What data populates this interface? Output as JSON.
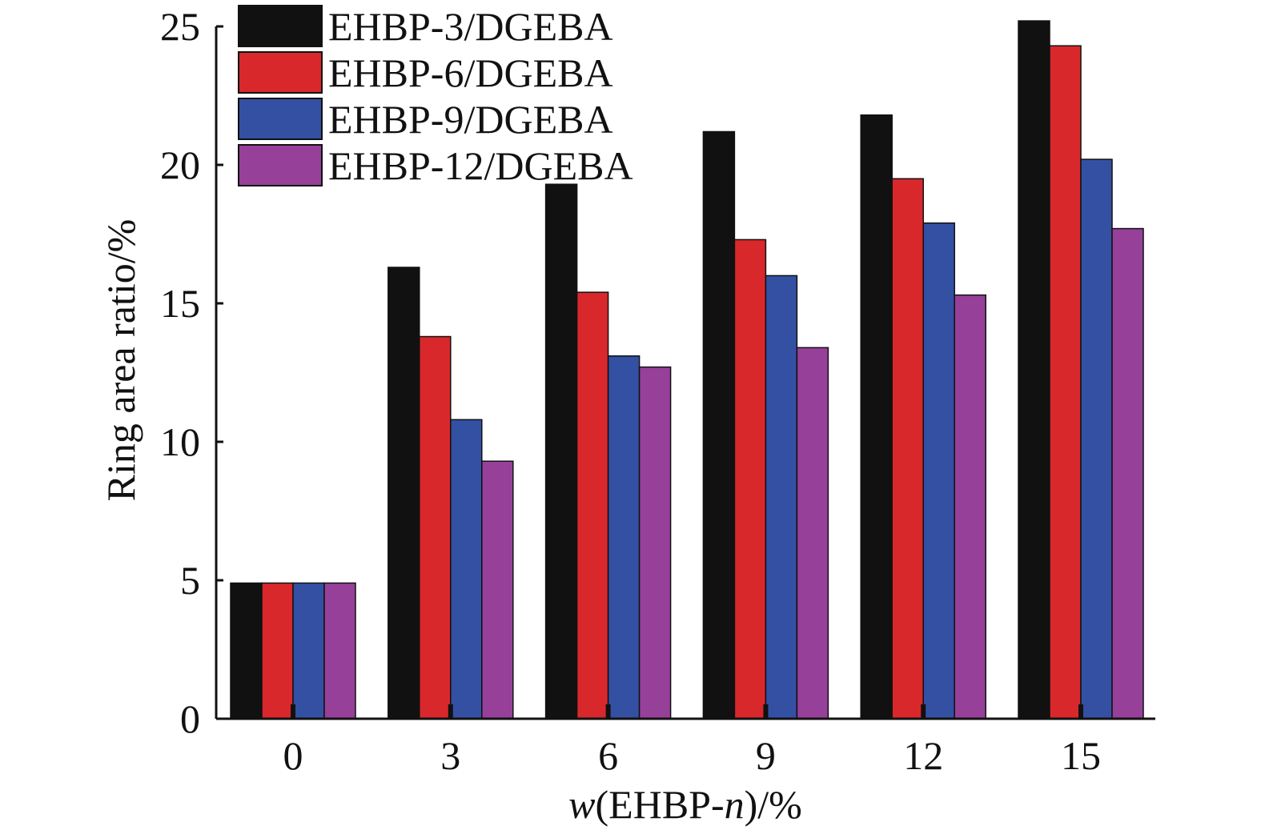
{
  "chart_data": {
    "type": "bar",
    "title": "",
    "xlabel_italic_var": "w",
    "xlabel_paren": "(EHBP-",
    "xlabel_italic_n": "n",
    "xlabel_tail": ")/%",
    "ylabel": "Ring area ratio/%",
    "categories": [
      "0",
      "3",
      "6",
      "9",
      "12",
      "15"
    ],
    "ylim": [
      0,
      25
    ],
    "yticks": [
      "0",
      "5",
      "10",
      "15",
      "20",
      "25"
    ],
    "grid": false,
    "legend_position": "top-left",
    "series": [
      {
        "name": "EHBP-3/DGEBA",
        "color": "#111111",
        "values": [
          4.9,
          16.3,
          19.3,
          21.2,
          21.8,
          25.2
        ]
      },
      {
        "name": "EHBP-6/DGEBA",
        "color": "#d9282b",
        "values": [
          4.9,
          13.8,
          15.4,
          17.3,
          19.5,
          24.3
        ]
      },
      {
        "name": "EHBP-9/DGEBA",
        "color": "#3450a2",
        "values": [
          4.9,
          10.8,
          13.1,
          16.0,
          17.9,
          20.2
        ]
      },
      {
        "name": "EHBP-12/DGEBA",
        "color": "#96409a",
        "values": [
          4.9,
          9.3,
          12.7,
          13.4,
          15.3,
          17.7
        ]
      }
    ]
  }
}
